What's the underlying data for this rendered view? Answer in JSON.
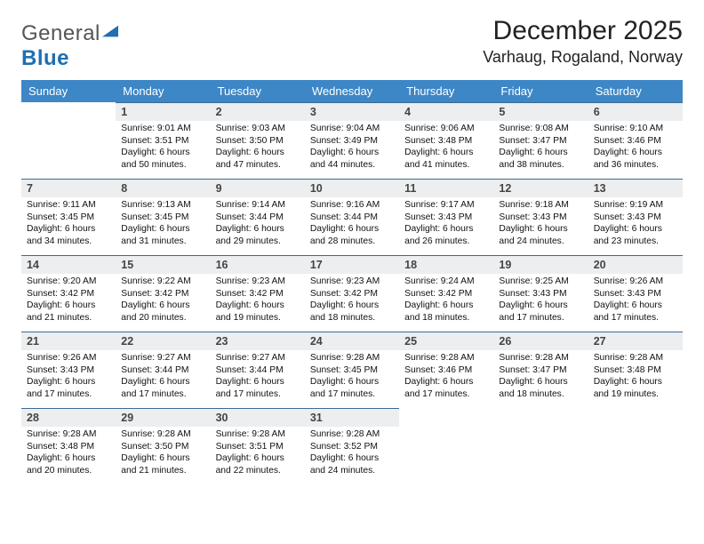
{
  "logo": {
    "word1": "General",
    "word2": "Blue"
  },
  "header": {
    "month": "December 2025",
    "location": "Varhaug, Rogaland, Norway"
  },
  "weekdays": [
    "Sunday",
    "Monday",
    "Tuesday",
    "Wednesday",
    "Thursday",
    "Friday",
    "Saturday"
  ],
  "colors": {
    "header_bg": "#3d87c7",
    "header_text": "#ffffff",
    "daynum_bg": "#eceef0",
    "row_border": "#3d6a92",
    "logo_blue": "#1f6fb2"
  },
  "weeks": [
    [
      {
        "n": "",
        "sr": "",
        "ss": "",
        "dl": ""
      },
      {
        "n": "1",
        "sr": "Sunrise: 9:01 AM",
        "ss": "Sunset: 3:51 PM",
        "dl": "Daylight: 6 hours and 50 minutes."
      },
      {
        "n": "2",
        "sr": "Sunrise: 9:03 AM",
        "ss": "Sunset: 3:50 PM",
        "dl": "Daylight: 6 hours and 47 minutes."
      },
      {
        "n": "3",
        "sr": "Sunrise: 9:04 AM",
        "ss": "Sunset: 3:49 PM",
        "dl": "Daylight: 6 hours and 44 minutes."
      },
      {
        "n": "4",
        "sr": "Sunrise: 9:06 AM",
        "ss": "Sunset: 3:48 PM",
        "dl": "Daylight: 6 hours and 41 minutes."
      },
      {
        "n": "5",
        "sr": "Sunrise: 9:08 AM",
        "ss": "Sunset: 3:47 PM",
        "dl": "Daylight: 6 hours and 38 minutes."
      },
      {
        "n": "6",
        "sr": "Sunrise: 9:10 AM",
        "ss": "Sunset: 3:46 PM",
        "dl": "Daylight: 6 hours and 36 minutes."
      }
    ],
    [
      {
        "n": "7",
        "sr": "Sunrise: 9:11 AM",
        "ss": "Sunset: 3:45 PM",
        "dl": "Daylight: 6 hours and 34 minutes."
      },
      {
        "n": "8",
        "sr": "Sunrise: 9:13 AM",
        "ss": "Sunset: 3:45 PM",
        "dl": "Daylight: 6 hours and 31 minutes."
      },
      {
        "n": "9",
        "sr": "Sunrise: 9:14 AM",
        "ss": "Sunset: 3:44 PM",
        "dl": "Daylight: 6 hours and 29 minutes."
      },
      {
        "n": "10",
        "sr": "Sunrise: 9:16 AM",
        "ss": "Sunset: 3:44 PM",
        "dl": "Daylight: 6 hours and 28 minutes."
      },
      {
        "n": "11",
        "sr": "Sunrise: 9:17 AM",
        "ss": "Sunset: 3:43 PM",
        "dl": "Daylight: 6 hours and 26 minutes."
      },
      {
        "n": "12",
        "sr": "Sunrise: 9:18 AM",
        "ss": "Sunset: 3:43 PM",
        "dl": "Daylight: 6 hours and 24 minutes."
      },
      {
        "n": "13",
        "sr": "Sunrise: 9:19 AM",
        "ss": "Sunset: 3:43 PM",
        "dl": "Daylight: 6 hours and 23 minutes."
      }
    ],
    [
      {
        "n": "14",
        "sr": "Sunrise: 9:20 AM",
        "ss": "Sunset: 3:42 PM",
        "dl": "Daylight: 6 hours and 21 minutes."
      },
      {
        "n": "15",
        "sr": "Sunrise: 9:22 AM",
        "ss": "Sunset: 3:42 PM",
        "dl": "Daylight: 6 hours and 20 minutes."
      },
      {
        "n": "16",
        "sr": "Sunrise: 9:23 AM",
        "ss": "Sunset: 3:42 PM",
        "dl": "Daylight: 6 hours and 19 minutes."
      },
      {
        "n": "17",
        "sr": "Sunrise: 9:23 AM",
        "ss": "Sunset: 3:42 PM",
        "dl": "Daylight: 6 hours and 18 minutes."
      },
      {
        "n": "18",
        "sr": "Sunrise: 9:24 AM",
        "ss": "Sunset: 3:42 PM",
        "dl": "Daylight: 6 hours and 18 minutes."
      },
      {
        "n": "19",
        "sr": "Sunrise: 9:25 AM",
        "ss": "Sunset: 3:43 PM",
        "dl": "Daylight: 6 hours and 17 minutes."
      },
      {
        "n": "20",
        "sr": "Sunrise: 9:26 AM",
        "ss": "Sunset: 3:43 PM",
        "dl": "Daylight: 6 hours and 17 minutes."
      }
    ],
    [
      {
        "n": "21",
        "sr": "Sunrise: 9:26 AM",
        "ss": "Sunset: 3:43 PM",
        "dl": "Daylight: 6 hours and 17 minutes."
      },
      {
        "n": "22",
        "sr": "Sunrise: 9:27 AM",
        "ss": "Sunset: 3:44 PM",
        "dl": "Daylight: 6 hours and 17 minutes."
      },
      {
        "n": "23",
        "sr": "Sunrise: 9:27 AM",
        "ss": "Sunset: 3:44 PM",
        "dl": "Daylight: 6 hours and 17 minutes."
      },
      {
        "n": "24",
        "sr": "Sunrise: 9:28 AM",
        "ss": "Sunset: 3:45 PM",
        "dl": "Daylight: 6 hours and 17 minutes."
      },
      {
        "n": "25",
        "sr": "Sunrise: 9:28 AM",
        "ss": "Sunset: 3:46 PM",
        "dl": "Daylight: 6 hours and 17 minutes."
      },
      {
        "n": "26",
        "sr": "Sunrise: 9:28 AM",
        "ss": "Sunset: 3:47 PM",
        "dl": "Daylight: 6 hours and 18 minutes."
      },
      {
        "n": "27",
        "sr": "Sunrise: 9:28 AM",
        "ss": "Sunset: 3:48 PM",
        "dl": "Daylight: 6 hours and 19 minutes."
      }
    ],
    [
      {
        "n": "28",
        "sr": "Sunrise: 9:28 AM",
        "ss": "Sunset: 3:48 PM",
        "dl": "Daylight: 6 hours and 20 minutes."
      },
      {
        "n": "29",
        "sr": "Sunrise: 9:28 AM",
        "ss": "Sunset: 3:50 PM",
        "dl": "Daylight: 6 hours and 21 minutes."
      },
      {
        "n": "30",
        "sr": "Sunrise: 9:28 AM",
        "ss": "Sunset: 3:51 PM",
        "dl": "Daylight: 6 hours and 22 minutes."
      },
      {
        "n": "31",
        "sr": "Sunrise: 9:28 AM",
        "ss": "Sunset: 3:52 PM",
        "dl": "Daylight: 6 hours and 24 minutes."
      },
      {
        "n": "",
        "sr": "",
        "ss": "",
        "dl": ""
      },
      {
        "n": "",
        "sr": "",
        "ss": "",
        "dl": ""
      },
      {
        "n": "",
        "sr": "",
        "ss": "",
        "dl": ""
      }
    ]
  ]
}
